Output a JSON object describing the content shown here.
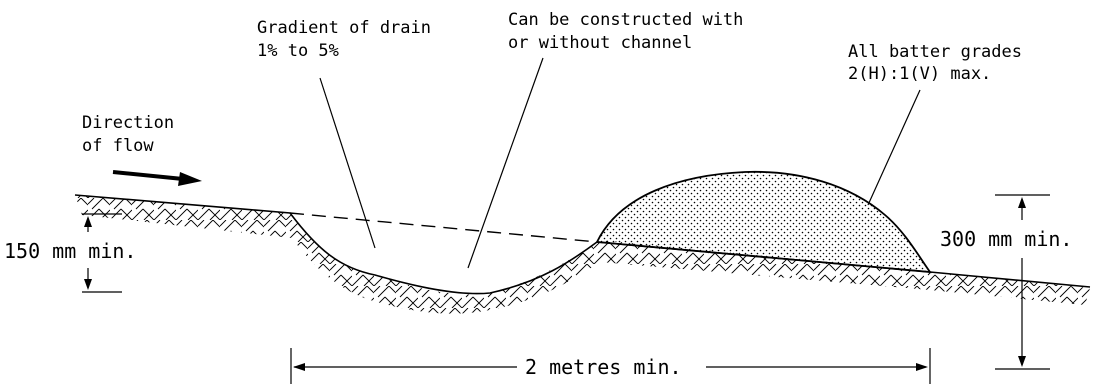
{
  "labels": {
    "gradient_line1": "Gradient of drain",
    "gradient_line2": "1% to 5%",
    "channel_line1": "Can be constructed with",
    "channel_line2": "or without channel",
    "batter_line1": "All batter grades",
    "batter_line2": "2(H):1(V) max.",
    "flow_line1": "Direction",
    "flow_line2": "of flow",
    "depth_min": "150 mm min.",
    "bank_height_min": "300 mm min.",
    "width_min": "2 metres min."
  },
  "colors": {
    "ink": "#000000",
    "background": "#ffffff"
  }
}
